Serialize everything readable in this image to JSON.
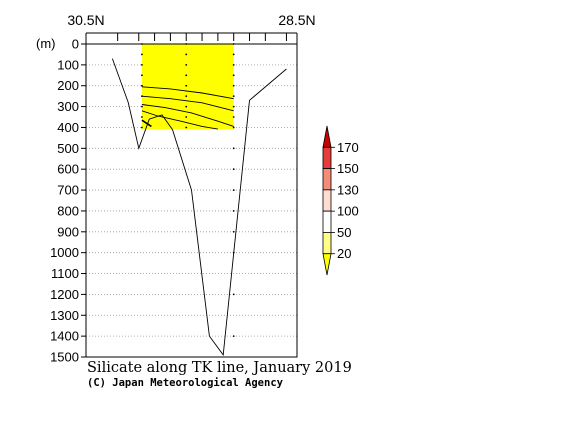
{
  "chart_data": {
    "type": "section-contour",
    "title": "Silicate along TK line, January 2019",
    "credit": "(C) Japan Meteorological Agency",
    "x_axis": {
      "left_label": "30.5N",
      "right_label": "28.5N",
      "lat_range": [
        30.5,
        28.5
      ],
      "station_lats": [
        30.2,
        30.0,
        29.85,
        29.7,
        29.55,
        29.4,
        29.25,
        29.1,
        28.95,
        28.8,
        28.6
      ]
    },
    "y_axis": {
      "unit_label": "(m)",
      "range": [
        0,
        1500
      ],
      "ticks": [
        0,
        100,
        200,
        300,
        400,
        500,
        600,
        700,
        800,
        900,
        1000,
        1100,
        1200,
        1300,
        1400,
        1500
      ],
      "tick_labels": [
        "0",
        "100",
        "200",
        "300",
        "400",
        "500",
        "600",
        "700",
        "800",
        "900",
        "1000",
        "1100",
        "1200",
        "1300",
        "1400",
        "1500"
      ]
    },
    "colorbar": {
      "levels": [
        20,
        50,
        100,
        130,
        150,
        170
      ],
      "labels": [
        "20",
        "50",
        "100",
        "130",
        "150",
        "170"
      ],
      "colors": [
        "#ffff00",
        "#ffff88",
        "#ffffff",
        "#ffdcd2",
        "#f58c78",
        "#e63c3c",
        "#cc0000"
      ]
    },
    "shaded_region": {
      "lat_range": [
        29.97,
        29.1
      ],
      "depth_range": [
        0,
        410
      ],
      "fill": "#ffff00"
    },
    "bottom_profile": [
      {
        "lat": 30.25,
        "depth": 70
      },
      {
        "lat": 30.1,
        "depth": 280
      },
      {
        "lat": 30.0,
        "depth": 500
      },
      {
        "lat": 29.9,
        "depth": 360
      },
      {
        "lat": 29.78,
        "depth": 340
      },
      {
        "lat": 29.68,
        "depth": 410
      },
      {
        "lat": 29.5,
        "depth": 700
      },
      {
        "lat": 29.33,
        "depth": 1400
      },
      {
        "lat": 29.2,
        "depth": 1490
      },
      {
        "lat": 28.95,
        "depth": 270
      },
      {
        "lat": 28.6,
        "depth": 120
      }
    ],
    "contours": [
      {
        "level": 20,
        "points": [
          {
            "lat": 29.97,
            "depth": 205
          },
          {
            "lat": 29.7,
            "depth": 215
          },
          {
            "lat": 29.4,
            "depth": 235
          },
          {
            "lat": 29.1,
            "depth": 262
          }
        ]
      },
      {
        "level": 30,
        "points": [
          {
            "lat": 29.97,
            "depth": 250
          },
          {
            "lat": 29.7,
            "depth": 262
          },
          {
            "lat": 29.4,
            "depth": 282
          },
          {
            "lat": 29.1,
            "depth": 320
          }
        ]
      },
      {
        "level": 40,
        "points": [
          {
            "lat": 29.97,
            "depth": 290
          },
          {
            "lat": 29.75,
            "depth": 305
          },
          {
            "lat": 29.5,
            "depth": 330
          },
          {
            "lat": 29.25,
            "depth": 370
          },
          {
            "lat": 29.1,
            "depth": 395
          }
        ]
      },
      {
        "level": 50,
        "points": [
          {
            "lat": 29.97,
            "depth": 320
          },
          {
            "lat": 29.82,
            "depth": 345
          },
          {
            "lat": 29.6,
            "depth": 370
          },
          {
            "lat": 29.4,
            "depth": 395
          },
          {
            "lat": 29.25,
            "depth": 408
          }
        ]
      },
      {
        "level": 60,
        "points": [
          {
            "lat": 29.97,
            "depth": 365
          },
          {
            "lat": 29.88,
            "depth": 395
          }
        ]
      }
    ],
    "sample_points": [
      {
        "lat": 29.97,
        "depths": [
          0,
          50,
          100,
          150,
          200,
          250,
          300,
          350,
          400
        ]
      },
      {
        "lat": 29.55,
        "depths": [
          0,
          50,
          100,
          150,
          200,
          250,
          300,
          350,
          400
        ]
      },
      {
        "lat": 29.1,
        "depths": [
          0,
          50,
          100,
          150,
          200,
          250,
          300,
          350,
          400,
          500,
          600,
          700,
          800,
          900,
          1000,
          1200,
          1400
        ]
      }
    ]
  }
}
